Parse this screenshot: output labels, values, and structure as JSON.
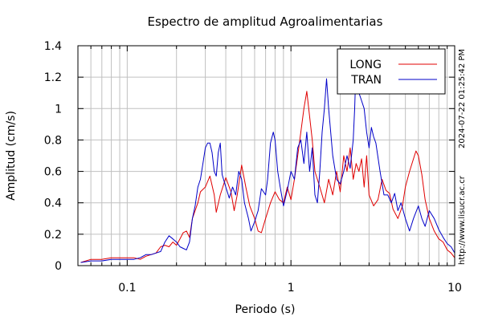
{
  "chart_data": {
    "type": "line",
    "title": "Espectro de amplitud Agroalimentarias",
    "xlabel": "Periodo (s)",
    "ylabel": "Amplitud (cm/s)",
    "x_scale": "log",
    "xlim": [
      0.05,
      10
    ],
    "ylim": [
      0,
      1.4
    ],
    "x_ticks": [
      {
        "value": 0.1,
        "label": "0.1"
      },
      {
        "value": 1,
        "label": "1"
      },
      {
        "value": 10,
        "label": "10"
      }
    ],
    "y_ticks": [
      {
        "value": 0,
        "label": "0"
      },
      {
        "value": 0.2,
        "label": "0.2"
      },
      {
        "value": 0.4,
        "label": "0.4"
      },
      {
        "value": 0.6,
        "label": "0.6"
      },
      {
        "value": 0.8,
        "label": "0.8"
      },
      {
        "value": 1.0,
        "label": "1"
      },
      {
        "value": 1.2,
        "label": "1.2"
      },
      {
        "value": 1.4,
        "label": "1.4"
      }
    ],
    "grid": true,
    "legend_position": "top-right",
    "series": [
      {
        "name": "LONG",
        "color": "#e00000",
        "points": [
          [
            0.052,
            0.02
          ],
          [
            0.06,
            0.04
          ],
          [
            0.07,
            0.04
          ],
          [
            0.08,
            0.05
          ],
          [
            0.09,
            0.05
          ],
          [
            0.1,
            0.05
          ],
          [
            0.11,
            0.05
          ],
          [
            0.12,
            0.04
          ],
          [
            0.13,
            0.06
          ],
          [
            0.15,
            0.08
          ],
          [
            0.16,
            0.12
          ],
          [
            0.17,
            0.13
          ],
          [
            0.18,
            0.12
          ],
          [
            0.19,
            0.15
          ],
          [
            0.2,
            0.13
          ],
          [
            0.21,
            0.17
          ],
          [
            0.22,
            0.21
          ],
          [
            0.23,
            0.22
          ],
          [
            0.24,
            0.18
          ],
          [
            0.25,
            0.3
          ],
          [
            0.26,
            0.35
          ],
          [
            0.27,
            0.4
          ],
          [
            0.28,
            0.47
          ],
          [
            0.3,
            0.5
          ],
          [
            0.32,
            0.57
          ],
          [
            0.34,
            0.45
          ],
          [
            0.35,
            0.34
          ],
          [
            0.37,
            0.45
          ],
          [
            0.4,
            0.56
          ],
          [
            0.43,
            0.47
          ],
          [
            0.45,
            0.35
          ],
          [
            0.47,
            0.45
          ],
          [
            0.5,
            0.64
          ],
          [
            0.53,
            0.5
          ],
          [
            0.56,
            0.38
          ],
          [
            0.6,
            0.3
          ],
          [
            0.63,
            0.22
          ],
          [
            0.66,
            0.21
          ],
          [
            0.7,
            0.3
          ],
          [
            0.75,
            0.4
          ],
          [
            0.8,
            0.47
          ],
          [
            0.85,
            0.42
          ],
          [
            0.9,
            0.4
          ],
          [
            0.95,
            0.5
          ],
          [
            1.0,
            0.42
          ],
          [
            1.05,
            0.55
          ],
          [
            1.1,
            0.7
          ],
          [
            1.15,
            0.85
          ],
          [
            1.2,
            1.0
          ],
          [
            1.25,
            1.11
          ],
          [
            1.3,
            0.95
          ],
          [
            1.35,
            0.8
          ],
          [
            1.4,
            0.6
          ],
          [
            1.5,
            0.5
          ],
          [
            1.6,
            0.4
          ],
          [
            1.7,
            0.55
          ],
          [
            1.8,
            0.45
          ],
          [
            1.9,
            0.6
          ],
          [
            2.0,
            0.47
          ],
          [
            2.1,
            0.7
          ],
          [
            2.2,
            0.6
          ],
          [
            2.3,
            0.75
          ],
          [
            2.4,
            0.55
          ],
          [
            2.5,
            0.65
          ],
          [
            2.6,
            0.6
          ],
          [
            2.7,
            0.68
          ],
          [
            2.8,
            0.5
          ],
          [
            2.9,
            0.7
          ],
          [
            3.0,
            0.45
          ],
          [
            3.2,
            0.38
          ],
          [
            3.4,
            0.42
          ],
          [
            3.6,
            0.55
          ],
          [
            3.8,
            0.48
          ],
          [
            4.0,
            0.46
          ],
          [
            4.2,
            0.36
          ],
          [
            4.5,
            0.3
          ],
          [
            4.8,
            0.38
          ],
          [
            5.0,
            0.5
          ],
          [
            5.3,
            0.6
          ],
          [
            5.6,
            0.68
          ],
          [
            5.8,
            0.73
          ],
          [
            6.0,
            0.7
          ],
          [
            6.3,
            0.58
          ],
          [
            6.6,
            0.42
          ],
          [
            7.0,
            0.3
          ],
          [
            7.5,
            0.22
          ],
          [
            8.0,
            0.17
          ],
          [
            8.5,
            0.15
          ],
          [
            9.0,
            0.1
          ],
          [
            9.5,
            0.08
          ],
          [
            10.0,
            0.05
          ]
        ]
      },
      {
        "name": "TRAN",
        "color": "#0000c8",
        "points": [
          [
            0.052,
            0.02
          ],
          [
            0.06,
            0.03
          ],
          [
            0.07,
            0.03
          ],
          [
            0.08,
            0.04
          ],
          [
            0.09,
            0.04
          ],
          [
            0.1,
            0.04
          ],
          [
            0.11,
            0.04
          ],
          [
            0.12,
            0.05
          ],
          [
            0.13,
            0.07
          ],
          [
            0.14,
            0.07
          ],
          [
            0.15,
            0.08
          ],
          [
            0.16,
            0.09
          ],
          [
            0.17,
            0.15
          ],
          [
            0.18,
            0.19
          ],
          [
            0.19,
            0.17
          ],
          [
            0.2,
            0.15
          ],
          [
            0.21,
            0.12
          ],
          [
            0.22,
            0.11
          ],
          [
            0.23,
            0.1
          ],
          [
            0.24,
            0.15
          ],
          [
            0.25,
            0.3
          ],
          [
            0.26,
            0.38
          ],
          [
            0.27,
            0.5
          ],
          [
            0.28,
            0.55
          ],
          [
            0.29,
            0.65
          ],
          [
            0.3,
            0.75
          ],
          [
            0.31,
            0.78
          ],
          [
            0.32,
            0.78
          ],
          [
            0.33,
            0.72
          ],
          [
            0.34,
            0.6
          ],
          [
            0.35,
            0.57
          ],
          [
            0.36,
            0.72
          ],
          [
            0.37,
            0.78
          ],
          [
            0.38,
            0.58
          ],
          [
            0.4,
            0.5
          ],
          [
            0.42,
            0.43
          ],
          [
            0.44,
            0.5
          ],
          [
            0.46,
            0.45
          ],
          [
            0.48,
            0.6
          ],
          [
            0.5,
            0.55
          ],
          [
            0.52,
            0.4
          ],
          [
            0.55,
            0.3
          ],
          [
            0.57,
            0.22
          ],
          [
            0.6,
            0.28
          ],
          [
            0.63,
            0.35
          ],
          [
            0.66,
            0.49
          ],
          [
            0.7,
            0.45
          ],
          [
            0.72,
            0.55
          ],
          [
            0.75,
            0.78
          ],
          [
            0.78,
            0.85
          ],
          [
            0.8,
            0.8
          ],
          [
            0.83,
            0.6
          ],
          [
            0.86,
            0.5
          ],
          [
            0.9,
            0.38
          ],
          [
            0.95,
            0.48
          ],
          [
            1.0,
            0.6
          ],
          [
            1.05,
            0.55
          ],
          [
            1.1,
            0.75
          ],
          [
            1.15,
            0.8
          ],
          [
            1.2,
            0.65
          ],
          [
            1.25,
            0.85
          ],
          [
            1.3,
            0.6
          ],
          [
            1.35,
            0.75
          ],
          [
            1.4,
            0.45
          ],
          [
            1.45,
            0.4
          ],
          [
            1.5,
            0.6
          ],
          [
            1.55,
            0.85
          ],
          [
            1.6,
            1.0
          ],
          [
            1.65,
            1.19
          ],
          [
            1.7,
            1.0
          ],
          [
            1.8,
            0.7
          ],
          [
            1.9,
            0.55
          ],
          [
            2.0,
            0.52
          ],
          [
            2.1,
            0.6
          ],
          [
            2.2,
            0.7
          ],
          [
            2.3,
            0.62
          ],
          [
            2.4,
            0.8
          ],
          [
            2.45,
            1.0
          ],
          [
            2.5,
            1.29
          ],
          [
            2.55,
            1.25
          ],
          [
            2.6,
            1.1
          ],
          [
            2.7,
            1.05
          ],
          [
            2.8,
            1.0
          ],
          [
            2.9,
            0.85
          ],
          [
            3.0,
            0.75
          ],
          [
            3.1,
            0.88
          ],
          [
            3.2,
            0.82
          ],
          [
            3.3,
            0.78
          ],
          [
            3.5,
            0.6
          ],
          [
            3.7,
            0.45
          ],
          [
            3.9,
            0.45
          ],
          [
            4.1,
            0.4
          ],
          [
            4.3,
            0.46
          ],
          [
            4.5,
            0.35
          ],
          [
            4.7,
            0.4
          ],
          [
            5.0,
            0.3
          ],
          [
            5.3,
            0.22
          ],
          [
            5.6,
            0.3
          ],
          [
            6.0,
            0.38
          ],
          [
            6.3,
            0.3
          ],
          [
            6.6,
            0.25
          ],
          [
            7.0,
            0.35
          ],
          [
            7.5,
            0.3
          ],
          [
            8.0,
            0.23
          ],
          [
            8.5,
            0.18
          ],
          [
            9.0,
            0.14
          ],
          [
            9.5,
            0.12
          ],
          [
            10.0,
            0.08
          ]
        ]
      }
    ]
  },
  "side_texts": {
    "timestamp": "2024-07-22 01:25:42 PM",
    "website": "http://www.lisucr.ac.cr"
  }
}
